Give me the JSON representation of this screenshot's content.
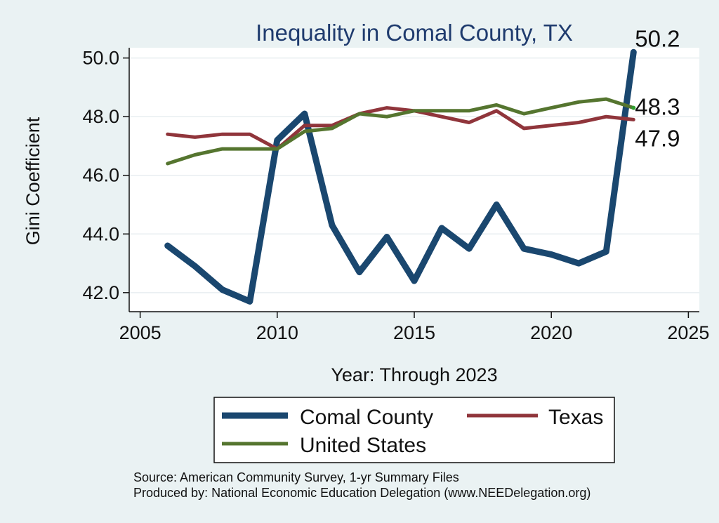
{
  "chart_data": {
    "type": "line",
    "title": "Inequality in Comal County, TX",
    "xlabel": "Year: Through 2023",
    "ylabel": "Gini Coefficient",
    "xlim": [
      2004.6,
      2025.4
    ],
    "ylim": [
      41.35,
      50.35
    ],
    "xticks": [
      2005,
      2010,
      2015,
      2020,
      2025
    ],
    "yticks": [
      42.0,
      44.0,
      46.0,
      48.0,
      50.0
    ],
    "ytick_labels": [
      "42.0",
      "44.0",
      "46.0",
      "48.0",
      "50.0"
    ],
    "grid": true,
    "legend_position": "bottom",
    "x": [
      2006,
      2007,
      2008,
      2009,
      2010,
      2011,
      2012,
      2013,
      2014,
      2015,
      2016,
      2017,
      2018,
      2019,
      2020,
      2021,
      2022,
      2023
    ],
    "series": [
      {
        "name": "Comal County",
        "color": "#1a476f",
        "values": [
          43.6,
          42.9,
          42.1,
          41.7,
          47.2,
          48.1,
          44.3,
          42.7,
          43.9,
          42.4,
          44.2,
          43.5,
          45.0,
          43.5,
          43.3,
          43.0,
          43.4,
          50.2
        ],
        "end_label": "50.2"
      },
      {
        "name": "Texas",
        "color": "#90353b",
        "values": [
          47.4,
          47.3,
          47.4,
          47.4,
          46.9,
          47.7,
          47.7,
          48.1,
          48.3,
          48.2,
          48.0,
          47.8,
          48.2,
          47.6,
          47.7,
          47.8,
          48.0,
          47.9
        ],
        "end_label": "47.9"
      },
      {
        "name": "United States",
        "color": "#55752f",
        "values": [
          46.4,
          46.7,
          46.9,
          46.9,
          46.9,
          47.5,
          47.6,
          48.1,
          48.0,
          48.2,
          48.2,
          48.2,
          48.4,
          48.1,
          48.3,
          48.5,
          48.6,
          48.3
        ],
        "end_label": "48.3"
      }
    ]
  },
  "source_line_1": "Source: American Community Survey, 1-yr Summary Files",
  "source_line_2": "Produced by: National Economic Education Delegation (www.NEEDelegation.org)"
}
